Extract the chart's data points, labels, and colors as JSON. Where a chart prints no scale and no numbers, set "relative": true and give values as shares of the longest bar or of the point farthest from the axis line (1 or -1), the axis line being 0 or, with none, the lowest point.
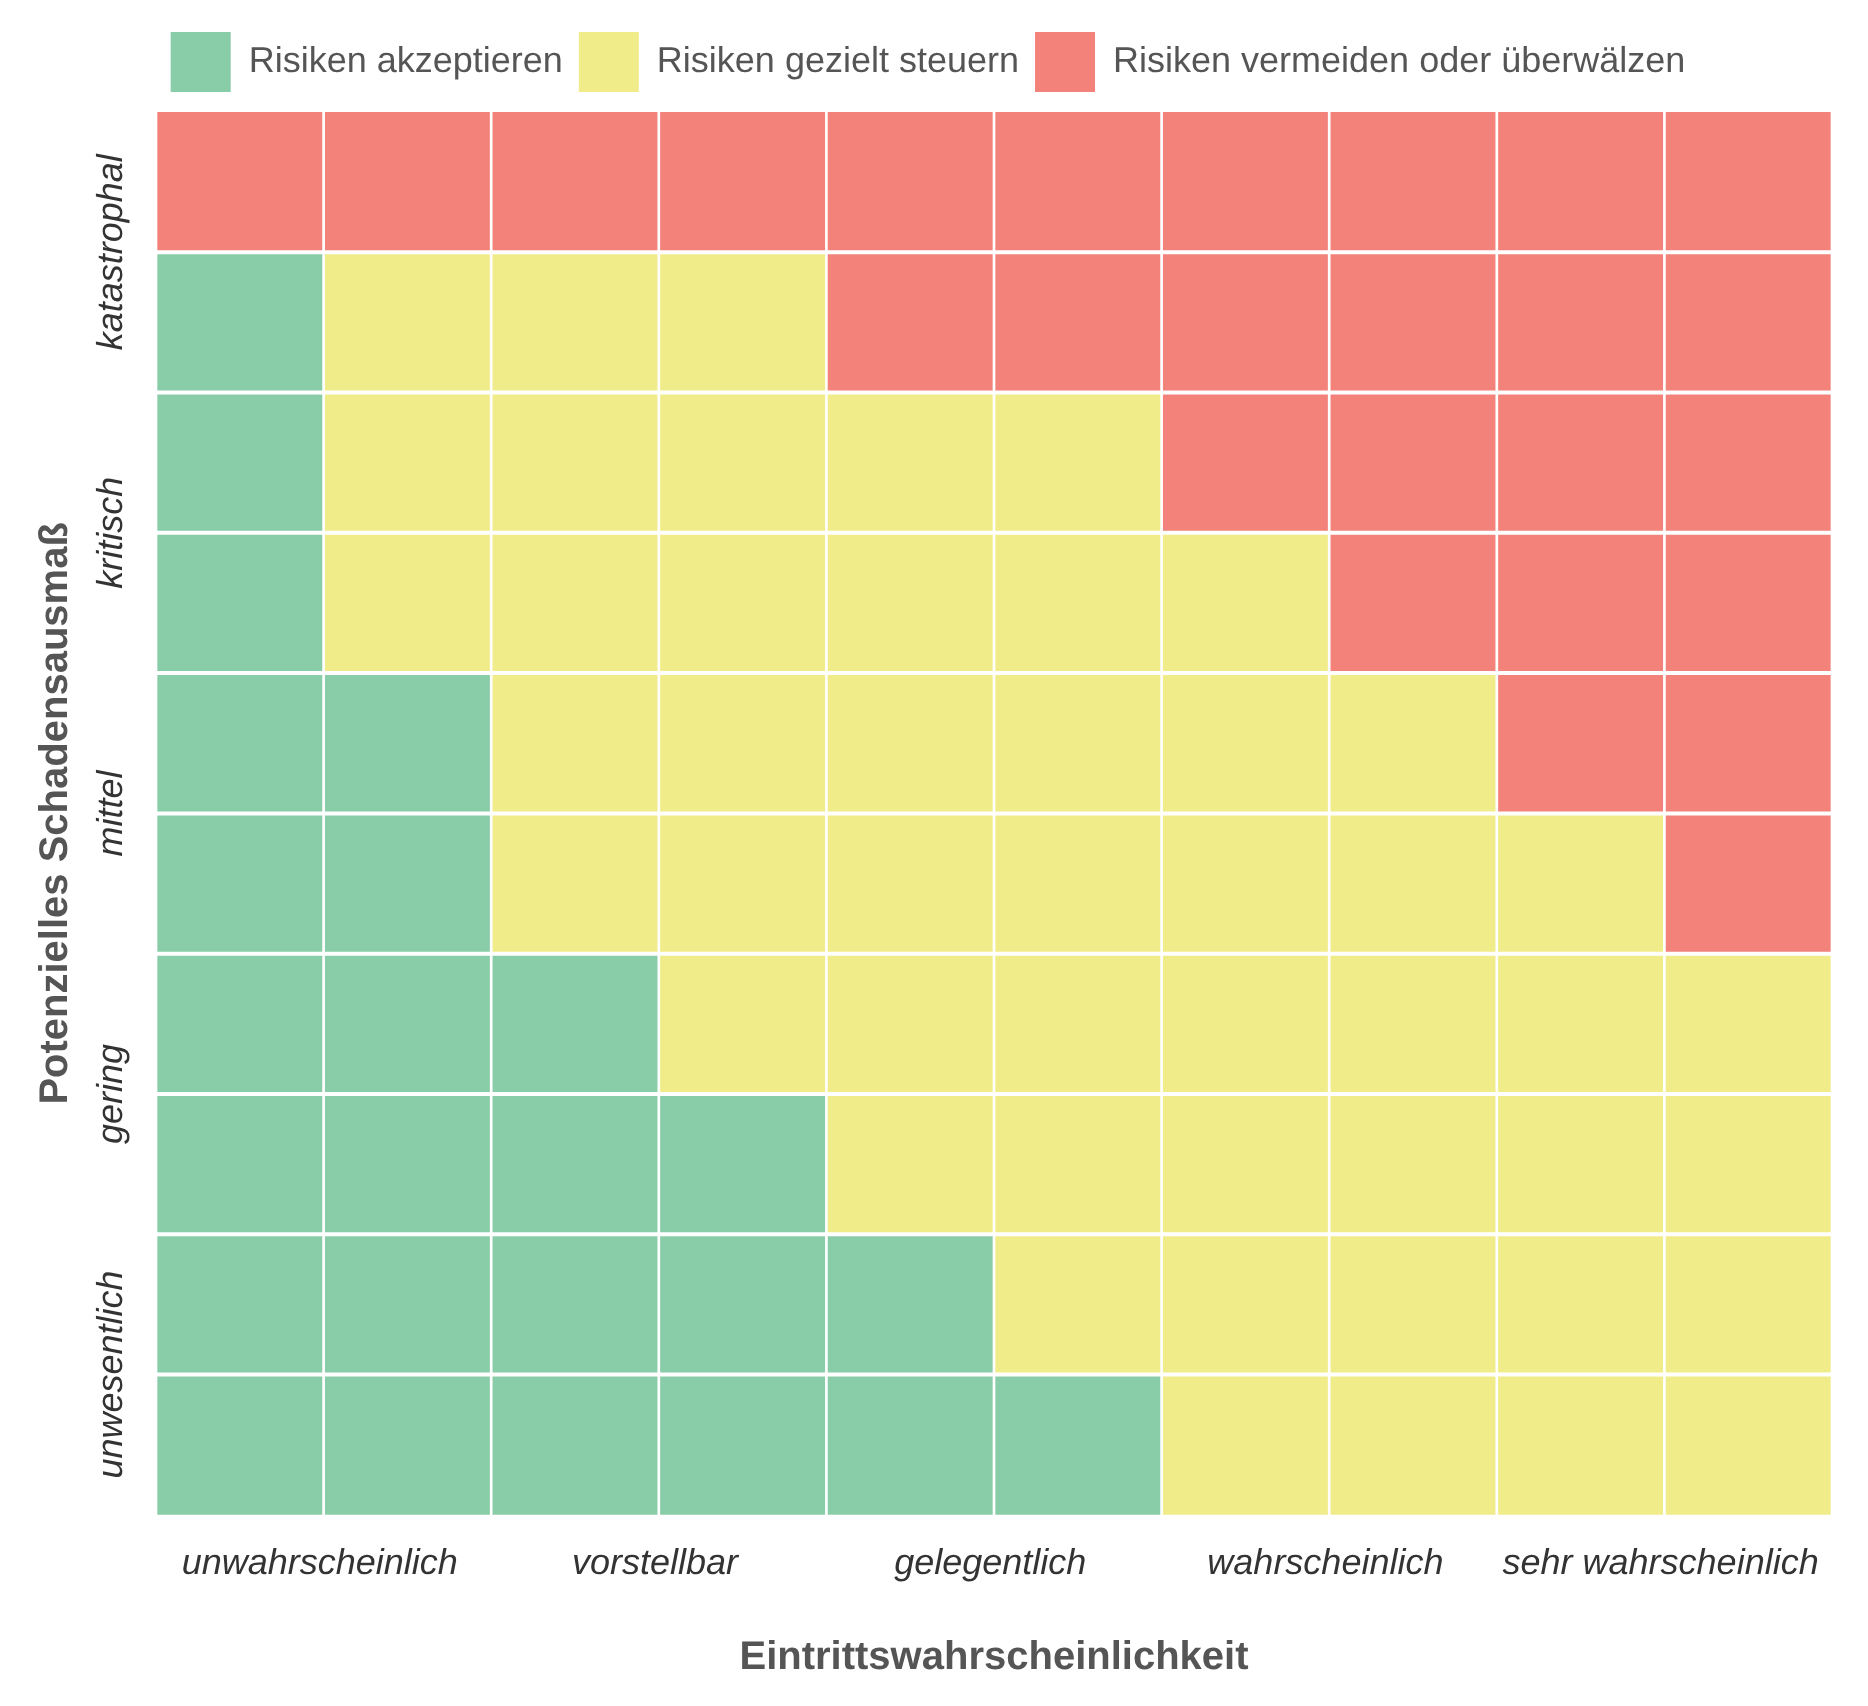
{
  "chart_data": {
    "type": "bar",
    "stacked": true,
    "relative": true,
    "xlabel": "Eintrittswahrscheinlichkeit",
    "ylabel": "Potenzielles Schadensausmaß",
    "categories": [
      "unwahrscheinlich",
      null,
      "vorstellbar",
      null,
      "gelegentlich",
      null,
      "wahrscheinlich",
      null,
      "sehr wahrscheinlich",
      null
    ],
    "y_categories": [
      "katastrophal",
      null,
      "kritisch",
      null,
      "mittel",
      null,
      "gering",
      null,
      "unwesentlich",
      null
    ],
    "series": [
      {
        "name": "Risiken akzeptieren",
        "color": "#88cca8",
        "values": [
          0.9,
          0.6,
          0.4,
          0.3,
          0.2,
          0.1,
          0,
          0,
          0,
          0
        ]
      },
      {
        "name": "Risiken gezielt steuern",
        "color": "#f0ec8a",
        "values": [
          0,
          0.3,
          0.5,
          0.6,
          0.6,
          0.7,
          0.7,
          0.6,
          0.5,
          0.4
        ]
      },
      {
        "name": "Risiken vermeiden oder überwälzen",
        "color": "#f2827a",
        "values": [
          0.1,
          0.1,
          0.1,
          0.1,
          0.2,
          0.2,
          0.3,
          0.4,
          0.5,
          0.6
        ]
      }
    ],
    "legend": "top",
    "grid": "y"
  }
}
